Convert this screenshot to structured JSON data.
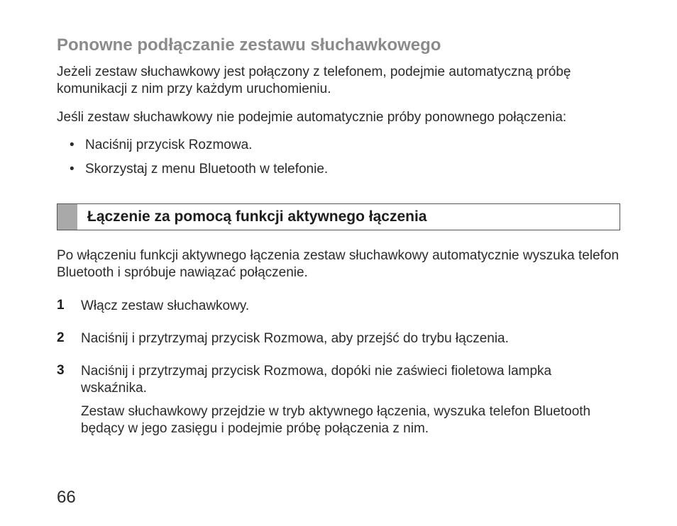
{
  "heading1": "Ponowne podłączanie zestawu słuchawkowego",
  "para1": "Jeżeli zestaw słuchawkowy jest połączony z telefonem, podejmie automatyczną próbę komunikacji z nim przy każdym uruchomieniu.",
  "para2": "Jeśli zestaw słuchawkowy nie podejmie automatycznie próby ponownego połączenia:",
  "bullets": [
    "Naciśnij przycisk Rozmowa.",
    "Skorzystaj z menu Bluetooth w telefonie."
  ],
  "section_title": "Łączenie za pomocą funkcji aktywnego łączenia",
  "para3": "Po włączeniu funkcji aktywnego łączenia zestaw słuchawkowy automatycznie wyszuka telefon Bluetooth i spróbuje nawiązać połączenie.",
  "steps": [
    {
      "num": "1",
      "text": "Włącz zestaw słuchawkowy.",
      "sub": ""
    },
    {
      "num": "2",
      "text": "Naciśnij i przytrzymaj przycisk Rozmowa, aby przejść do trybu łączenia.",
      "sub": ""
    },
    {
      "num": "3",
      "text": "Naciśnij i przytrzymaj przycisk Rozmowa, dopóki nie zaświeci fioletowa lampka wskaźnika.",
      "sub": "Zestaw słuchawkowy przejdzie w tryb aktywnego łączenia, wyszuka telefon Bluetooth będący w jego zasięgu i podejmie próbę połączenia z nim."
    }
  ],
  "page_number": "66"
}
